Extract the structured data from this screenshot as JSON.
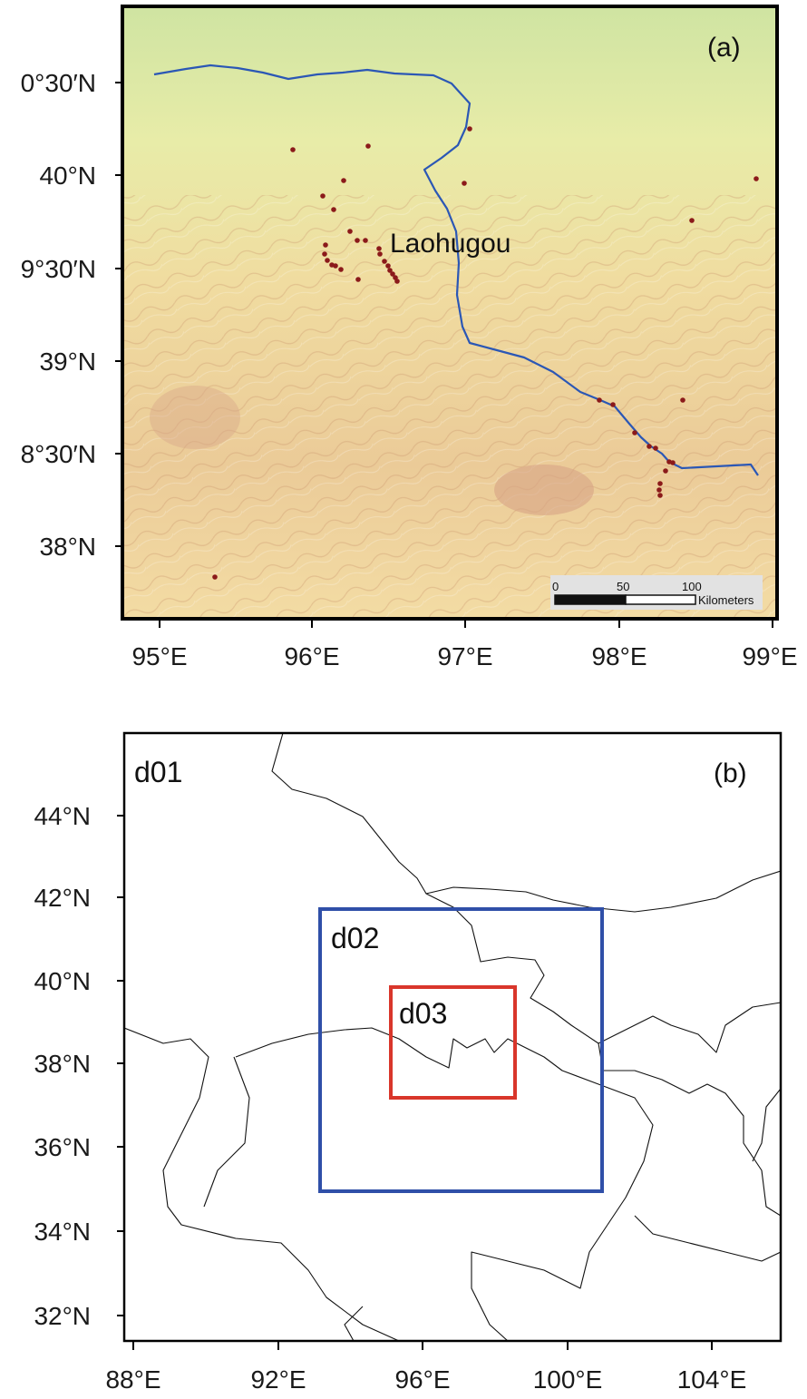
{
  "panel_a": {
    "label": "(a)",
    "place_label": "Laohugou",
    "lat_ticks": [
      "0°30′N",
      "40°N",
      "9°30′N",
      "39°N",
      "8°30′N",
      "38°N"
    ],
    "lon_ticks": [
      "95°E",
      "96°E",
      "97°E",
      "98°E",
      "99°E"
    ],
    "scale_bar": {
      "ticks": [
        "0",
        "50",
        "100"
      ],
      "unit": "Kilometers"
    },
    "colors": {
      "river": "#2b57b5",
      "stations": "#8b1a1a",
      "terrain_low": "#d8e8a4",
      "terrain_high": "#e2b98c"
    }
  },
  "panel_b": {
    "label": "(b)",
    "domains": [
      {
        "name": "d01",
        "color": "#000000"
      },
      {
        "name": "d02",
        "color": "#2f4fa8"
      },
      {
        "name": "d03",
        "color": "#d9362b"
      }
    ],
    "lat_ticks": [
      "44°N",
      "42°N",
      "40°N",
      "38°N",
      "36°N",
      "34°N",
      "32°N"
    ],
    "lon_ticks": [
      "88°E",
      "92°E",
      "96°E",
      "100°E",
      "104°E"
    ]
  }
}
